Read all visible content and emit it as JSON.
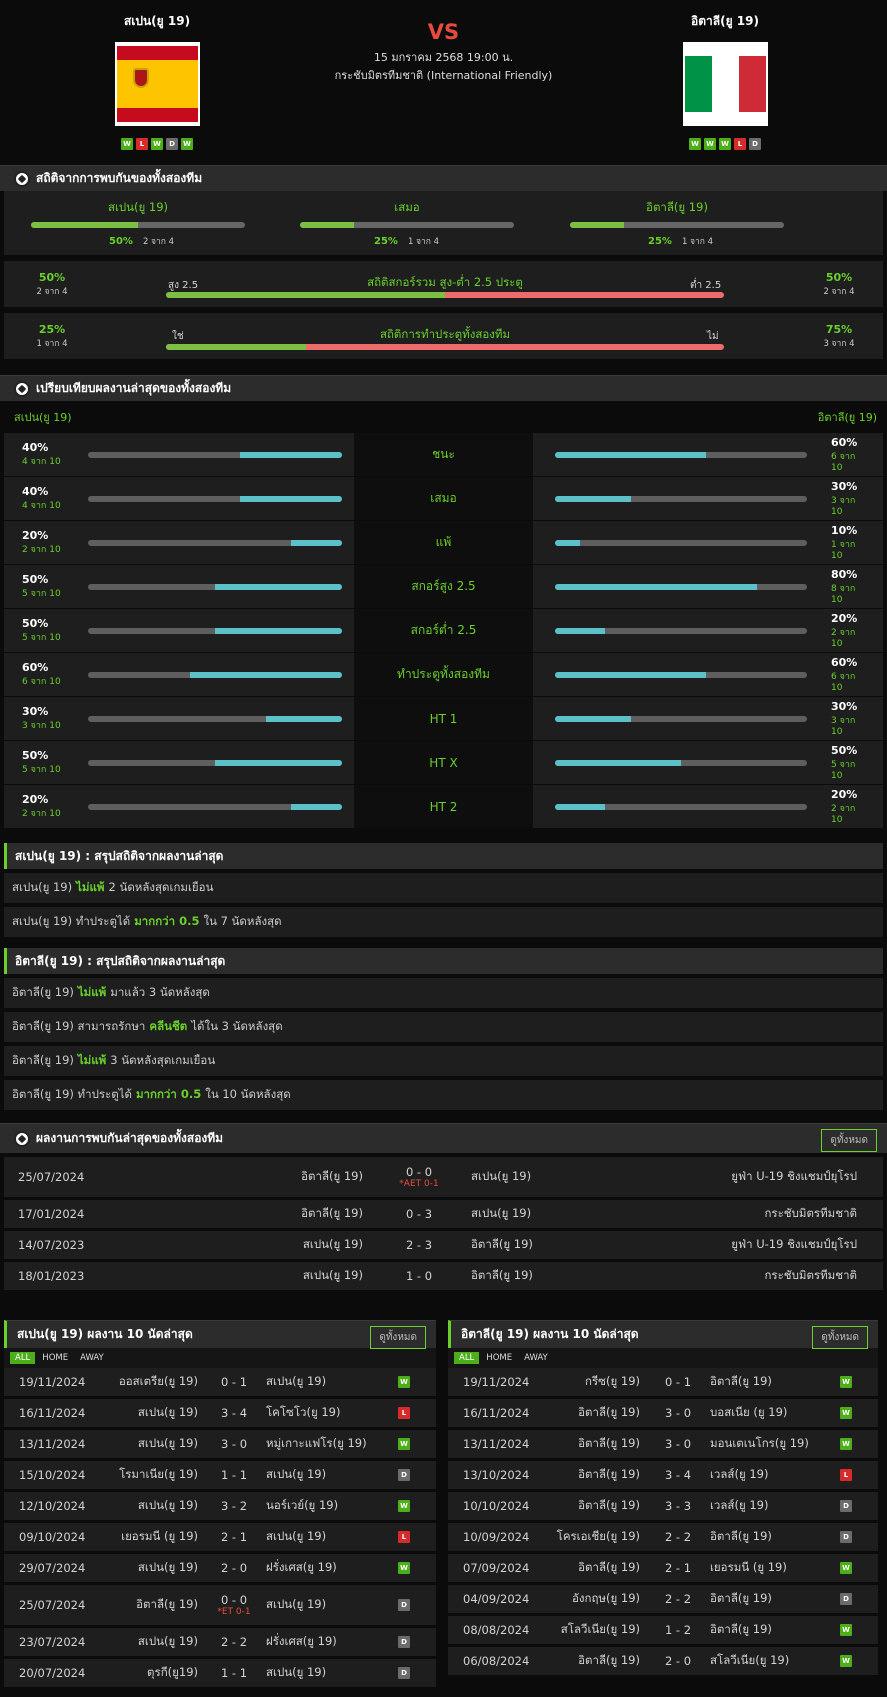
{
  "match": {
    "home": "สเปน(ยู 19)",
    "away": "อิตาลี(ยู 19)",
    "vs": "VS",
    "datetime": "15 มกราคม 2568 19:00 น.",
    "competition": "กระชับมิตรทีมชาติ (International Friendly)",
    "home_form": [
      "W",
      "L",
      "W",
      "D",
      "W"
    ],
    "away_form": [
      "W",
      "W",
      "W",
      "L",
      "D"
    ]
  },
  "h2h_stats": {
    "title": "สถิติจากการพบกันของทั้งสองทีม",
    "cols": [
      {
        "label": "สเปน(ยู 19)",
        "pct": "50%",
        "count": "2 จาก 4",
        "value": 0.5
      },
      {
        "label": "เสมอ",
        "pct": "25%",
        "count": "1 จาก 4",
        "value": 0.25
      },
      {
        "label": "อิตาลี(ยู 19)",
        "pct": "25%",
        "count": "1 จาก 4",
        "value": 0.25
      }
    ],
    "ou": {
      "title": "สถิติสกอร์รวม สูง-ต่ำ 2.5 ประตู",
      "left_label": "สูง 2.5",
      "right_label": "ต่ำ 2.5",
      "left_pct": "50%",
      "left_count": "2 จาก 4",
      "right_pct": "50%",
      "right_count": "2 จาก 4",
      "value": 0.5
    },
    "btts": {
      "title": "สถิติการทำประตูทั้งสองทีม",
      "left_label": "ใช่",
      "right_label": "ไม่",
      "left_pct": "25%",
      "left_count": "1 จาก 4",
      "right_pct": "75%",
      "right_count": "3 จาก 4",
      "value": 0.25
    }
  },
  "compare": {
    "title": "เปรียบเทียบผลงานล่าสุดของทั้งสองทีม",
    "home": "สเปน(ยู 19)",
    "away": "อิตาลี(ยู 19)",
    "rows": [
      {
        "label": "ชนะ",
        "hp": "40%",
        "hc": "4 จาก 10",
        "hv": 0.4,
        "ap": "60%",
        "ac": "6 จาก 10",
        "av": 0.6
      },
      {
        "label": "เสมอ",
        "hp": "40%",
        "hc": "4 จาก 10",
        "hv": 0.4,
        "ap": "30%",
        "ac": "3 จาก 10",
        "av": 0.3
      },
      {
        "label": "แพ้",
        "hp": "20%",
        "hc": "2 จาก 10",
        "hv": 0.2,
        "ap": "10%",
        "ac": "1 จาก 10",
        "av": 0.1
      },
      {
        "label": "สกอร์สูง 2.5",
        "hp": "50%",
        "hc": "5 จาก 10",
        "hv": 0.5,
        "ap": "80%",
        "ac": "8 จาก 10",
        "av": 0.8
      },
      {
        "label": "สกอร์ต่ำ 2.5",
        "hp": "50%",
        "hc": "5 จาก 10",
        "hv": 0.5,
        "ap": "20%",
        "ac": "2 จาก 10",
        "av": 0.2
      },
      {
        "label": "ทำประตูทั้งสองทีม",
        "hp": "60%",
        "hc": "6 จาก 10",
        "hv": 0.6,
        "ap": "60%",
        "ac": "6 จาก 10",
        "av": 0.6
      },
      {
        "label": "HT 1",
        "hp": "30%",
        "hc": "3 จาก 10",
        "hv": 0.3,
        "ap": "30%",
        "ac": "3 จาก 10",
        "av": 0.3
      },
      {
        "label": "HT X",
        "hp": "50%",
        "hc": "5 จาก 10",
        "hv": 0.5,
        "ap": "50%",
        "ac": "5 จาก 10",
        "av": 0.5
      },
      {
        "label": "HT 2",
        "hp": "20%",
        "hc": "2 จาก 10",
        "hv": 0.2,
        "ap": "20%",
        "ac": "2 จาก 10",
        "av": 0.2
      }
    ]
  },
  "summary_home": {
    "title": "สเปน(ยู 19) : สรุปสถิติจากผลงานล่าสุด",
    "rows": [
      [
        "สเปน(ยู 19)",
        "ไม่แพ้",
        "2 นัดหลังสุดเกมเยือน"
      ],
      [
        "สเปน(ยู 19) ทำประตูได้",
        "มากกว่า 0.5",
        "ใน 7 นัดหลังสุด"
      ]
    ]
  },
  "summary_away": {
    "title": "อิตาลี(ยู 19) : สรุปสถิติจากผลงานล่าสุด",
    "rows": [
      [
        "อิตาลี(ยู 19)",
        "ไม่แพ้",
        "มาแล้ว 3 นัดหลังสุด"
      ],
      [
        "อิตาลี(ยู 19) สามารถรักษา",
        "คลีนชีต",
        "ได้ใน 3 นัดหลังสุด"
      ],
      [
        "อิตาลี(ยู 19)",
        "ไม่แพ้",
        "3 นัดหลังสุดเกมเยือน"
      ],
      [
        "อิตาลี(ยู 19) ทำประตูได้",
        "มากกว่า 0.5",
        "ใน 10 นัดหลังสุด"
      ]
    ]
  },
  "h2h_results": {
    "title": "ผลงานการพบกันล่าสุดของทั้งสองทีม",
    "view_all": "ดูทั้งหมด",
    "rows": [
      {
        "date": "25/07/2024",
        "home": "อิตาลี(ยู 19)",
        "score": "0 - 0",
        "note": "*AET 0-1",
        "away": "สเปน(ยู 19)",
        "comp": "ยูฟ่า U-19 ชิงแชมป์ยุโรป"
      },
      {
        "date": "17/01/2024",
        "home": "อิตาลี(ยู 19)",
        "score": "0 - 3",
        "note": "",
        "away": "สเปน(ยู 19)",
        "comp": "กระชับมิตรทีมชาติ"
      },
      {
        "date": "14/07/2023",
        "home": "สเปน(ยู 19)",
        "score": "2 - 3",
        "note": "",
        "away": "อิตาลี(ยู 19)",
        "comp": "ยูฟ่า U-19 ชิงแชมป์ยุโรป"
      },
      {
        "date": "18/01/2023",
        "home": "สเปน(ยู 19)",
        "score": "1 - 0",
        "note": "",
        "away": "อิตาลี(ยู 19)",
        "comp": "กระชับมิตรทีมชาติ"
      }
    ]
  },
  "recent_home": {
    "title": "สเปน(ยู 19) ผลงาน 10 นัดล่าสุด",
    "view_all": "ดูทั้งหมด",
    "tabs": [
      "ALL",
      "HOME",
      "AWAY"
    ],
    "rows": [
      {
        "date": "19/11/2024",
        "home": "ออสเตรีย(ยู 19)",
        "score": "0 - 1",
        "note": "",
        "away": "สเปน(ยู 19)",
        "r": "W"
      },
      {
        "date": "16/11/2024",
        "home": "สเปน(ยู 19)",
        "score": "3 - 4",
        "note": "",
        "away": "โคโซโว(ยู 19)",
        "r": "L"
      },
      {
        "date": "13/11/2024",
        "home": "สเปน(ยู 19)",
        "score": "3 - 0",
        "note": "",
        "away": "หมู่เกาะแฟโร(ยู 19)",
        "r": "W"
      },
      {
        "date": "15/10/2024",
        "home": "โรมาเนีย(ยู 19)",
        "score": "1 - 1",
        "note": "",
        "away": "สเปน(ยู 19)",
        "r": "D"
      },
      {
        "date": "12/10/2024",
        "home": "สเปน(ยู 19)",
        "score": "3 - 2",
        "note": "",
        "away": "นอร์เวย์(ยู 19)",
        "r": "W"
      },
      {
        "date": "09/10/2024",
        "home": "เยอรมนี (ยู 19)",
        "score": "2 - 1",
        "note": "",
        "away": "สเปน(ยู 19)",
        "r": "L"
      },
      {
        "date": "29/07/2024",
        "home": "สเปน(ยู 19)",
        "score": "2 - 0",
        "note": "",
        "away": "ฝรั่งเศส(ยู 19)",
        "r": "W"
      },
      {
        "date": "25/07/2024",
        "home": "อิตาลี(ยู 19)",
        "score": "0 - 0",
        "note": "*ET 0-1",
        "away": "สเปน(ยู 19)",
        "r": "D"
      },
      {
        "date": "23/07/2024",
        "home": "สเปน(ยู 19)",
        "score": "2 - 2",
        "note": "",
        "away": "ฝรั่งเศส(ยู 19)",
        "r": "D"
      },
      {
        "date": "20/07/2024",
        "home": "ตุรกี(ยู19)",
        "score": "1 - 1",
        "note": "",
        "away": "สเปน(ยู 19)",
        "r": "D"
      }
    ]
  },
  "recent_away": {
    "title": "อิตาลี(ยู 19) ผลงาน 10 นัดล่าสุด",
    "view_all": "ดูทั้งหมด",
    "tabs": [
      "ALL",
      "HOME",
      "AWAY"
    ],
    "rows": [
      {
        "date": "19/11/2024",
        "home": "กรีซ(ยู 19)",
        "score": "0 - 1",
        "note": "",
        "away": "อิตาลี(ยู 19)",
        "r": "W"
      },
      {
        "date": "16/11/2024",
        "home": "อิตาลี(ยู 19)",
        "score": "3 - 0",
        "note": "",
        "away": "บอสเนีย (ยู 19)",
        "r": "W"
      },
      {
        "date": "13/11/2024",
        "home": "อิตาลี(ยู 19)",
        "score": "3 - 0",
        "note": "",
        "away": "มอนเตเนโกร(ยู 19)",
        "r": "W"
      },
      {
        "date": "13/10/2024",
        "home": "อิตาลี(ยู 19)",
        "score": "3 - 4",
        "note": "",
        "away": "เวลส์(ยู 19)",
        "r": "L"
      },
      {
        "date": "10/10/2024",
        "home": "อิตาลี(ยู 19)",
        "score": "3 - 3",
        "note": "",
        "away": "เวลส์(ยู 19)",
        "r": "D"
      },
      {
        "date": "10/09/2024",
        "home": "โครเอเชีย(ยู 19)",
        "score": "2 - 2",
        "note": "",
        "away": "อิตาลี(ยู 19)",
        "r": "D"
      },
      {
        "date": "07/09/2024",
        "home": "อิตาลี(ยู 19)",
        "score": "2 - 1",
        "note": "",
        "away": "เยอรมนี (ยู 19)",
        "r": "W"
      },
      {
        "date": "04/09/2024",
        "home": "อังกฤษ(ยู 19)",
        "score": "2 - 2",
        "note": "",
        "away": "อิตาลี(ยู 19)",
        "r": "D"
      },
      {
        "date": "08/08/2024",
        "home": "สโลวีเนีย(ยู 19)",
        "score": "1 - 2",
        "note": "",
        "away": "อิตาลี(ยู 19)",
        "r": "W"
      },
      {
        "date": "06/08/2024",
        "home": "อิตาลี(ยู 19)",
        "score": "2 - 0",
        "note": "",
        "away": "สโลวีเนีย(ยู 19)",
        "r": "W"
      }
    ]
  }
}
